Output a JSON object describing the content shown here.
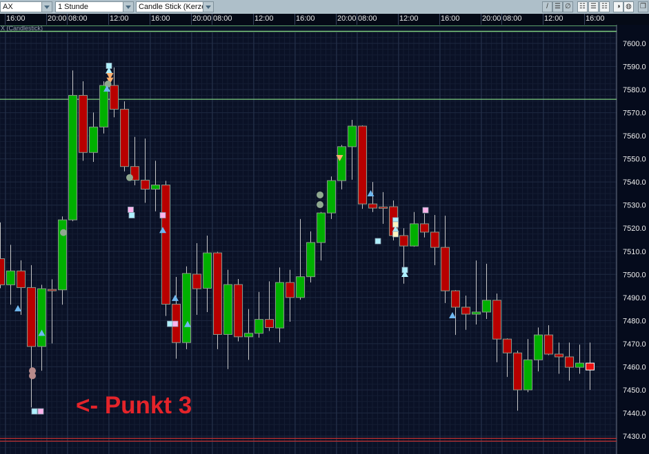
{
  "toolbar": {
    "symbol": "AX",
    "interval": "1 Stunde",
    "chart_type": "Candle Stick (Kerze",
    "buttons": [
      {
        "icon": "draw-line-icon",
        "glyph": "/"
      },
      {
        "icon": "horizontal-line-icon",
        "glyph": "☰"
      },
      {
        "icon": "delete-drawing-icon",
        "glyph": "∅"
      },
      {
        "icon": "grid-dense-icon",
        "glyph": "☷"
      },
      {
        "icon": "grid-medium-icon",
        "glyph": "☰"
      },
      {
        "icon": "grid-light-icon",
        "glyph": "☷"
      },
      {
        "icon": "zoom-in-icon",
        "glyph": "◑"
      },
      {
        "icon": "zoom-out-icon",
        "glyph": "◍"
      },
      {
        "icon": "detach-window-icon",
        "glyph": "❐"
      }
    ]
  },
  "panel_title": "X (Candlestick)",
  "annotation": "<- Punkt 3",
  "colors": {
    "background": "#0a1126",
    "grid": "#1d2840",
    "up": "#00b000",
    "down": "#b80000",
    "last_down": "#ee1111",
    "wick": "#c8c8c8",
    "hline_green": "#7fd07f",
    "hline_red": "#c03030"
  },
  "chart_data": {
    "type": "candlestick",
    "ylim": [
      7425,
      7605
    ],
    "y_ticks": [
      "7600.0",
      "7590.0",
      "7580.0",
      "7570.0",
      "7560.0",
      "7550.0",
      "7540.0",
      "7530.0",
      "7520.0",
      "7510.0",
      "7500.0",
      "7490.0",
      "7480.0",
      "7470.0",
      "7460.0",
      "7450.0",
      "7440.0",
      "7430.0"
    ],
    "x_ticks": [
      {
        "candle": 1,
        "label": "16:00"
      },
      {
        "candle": 5,
        "label": "20:00"
      },
      {
        "candle": 7,
        "label": "08:00"
      },
      {
        "candle": 11,
        "label": "12:00"
      },
      {
        "candle": 15,
        "label": "16:00"
      },
      {
        "candle": 19,
        "label": "20:00"
      },
      {
        "candle": 21,
        "label": "08:00"
      },
      {
        "candle": 25,
        "label": "12:00"
      },
      {
        "candle": 29,
        "label": "16:00"
      },
      {
        "candle": 33,
        "label": "20:00"
      },
      {
        "candle": 35,
        "label": "08:00"
      },
      {
        "candle": 39,
        "label": "12:00"
      },
      {
        "candle": 43,
        "label": "16:00"
      },
      {
        "candle": 47,
        "label": "20:00"
      },
      {
        "candle": 49,
        "label": "08:00"
      },
      {
        "candle": 53,
        "label": "12:00"
      },
      {
        "candle": 57,
        "label": "16:00"
      }
    ],
    "grid": true,
    "candles": [
      {
        "t": "15:00",
        "o": 7506.8,
        "h": 7522.5,
        "l": 7494.0,
        "c": 7495.5
      },
      {
        "t": "16:00",
        "o": 7495.5,
        "h": 7512.8,
        "l": 7486.9,
        "c": 7501.5
      },
      {
        "t": "17:00",
        "o": 7501.5,
        "h": 7506.1,
        "l": 7482.5,
        "c": 7494.3
      },
      {
        "t": "18:00",
        "o": 7494.3,
        "h": 7504.0,
        "l": 7442.4,
        "c": 7468.8
      },
      {
        "t": "19:00",
        "o": 7468.8,
        "h": 7495.5,
        "l": 7458.3,
        "c": 7493.8
      },
      {
        "t": "20:00",
        "o": 7493.5,
        "h": 7497.9,
        "l": 7470.1,
        "c": 7493.2
      },
      {
        "t": "21:00",
        "o": 7493.3,
        "h": 7525.1,
        "l": 7486.9,
        "c": 7523.6
      },
      {
        "t": "08:00",
        "o": 7523.6,
        "h": 7588.3,
        "l": 7523.0,
        "c": 7577.5
      },
      {
        "t": "09:00",
        "o": 7577.5,
        "h": 7583.6,
        "l": 7549.2,
        "c": 7552.8
      },
      {
        "t": "10:00",
        "o": 7552.8,
        "h": 7570.1,
        "l": 7548.7,
        "c": 7563.8
      },
      {
        "t": "11:00",
        "o": 7563.8,
        "h": 7583.6,
        "l": 7561.0,
        "c": 7581.8
      },
      {
        "t": "12:00",
        "o": 7581.8,
        "h": 7589.6,
        "l": 7568.0,
        "c": 7571.5
      },
      {
        "t": "13:00",
        "o": 7571.5,
        "h": 7574.9,
        "l": 7544.6,
        "c": 7546.7
      },
      {
        "t": "14:00",
        "o": 7546.7,
        "h": 7559.5,
        "l": 7538.6,
        "c": 7540.8
      },
      {
        "t": "15:00",
        "o": 7540.8,
        "h": 7558.8,
        "l": 7531.0,
        "c": 7536.9
      },
      {
        "t": "16:00",
        "o": 7536.9,
        "h": 7549.2,
        "l": 7527.3,
        "c": 7538.7
      },
      {
        "t": "17:00",
        "o": 7538.7,
        "h": 7540.5,
        "l": 7482.0,
        "c": 7487.1
      },
      {
        "t": "18:00",
        "o": 7487.1,
        "h": 7498.9,
        "l": 7463.5,
        "c": 7470.5
      },
      {
        "t": "19:00",
        "o": 7470.5,
        "h": 7503.5,
        "l": 7467.6,
        "c": 7500.4
      },
      {
        "t": "20:00",
        "o": 7500.1,
        "h": 7513.5,
        "l": 7482.5,
        "c": 7493.8
      },
      {
        "t": "21:00",
        "o": 7494.0,
        "h": 7516.8,
        "l": 7483.7,
        "c": 7509.3
      },
      {
        "t": "08:00",
        "o": 7509.3,
        "h": 7509.8,
        "l": 7467.6,
        "c": 7474.0
      },
      {
        "t": "09:00",
        "o": 7474.0,
        "h": 7502.0,
        "l": 7459.0,
        "c": 7495.6
      },
      {
        "t": "10:00",
        "o": 7495.6,
        "h": 7498.0,
        "l": 7471.0,
        "c": 7473.0
      },
      {
        "t": "11:00",
        "o": 7473.0,
        "h": 7485.0,
        "l": 7463.0,
        "c": 7474.5
      },
      {
        "t": "12:00",
        "o": 7474.5,
        "h": 7492.4,
        "l": 7472.6,
        "c": 7480.5
      },
      {
        "t": "13:00",
        "o": 7480.5,
        "h": 7497.0,
        "l": 7475.5,
        "c": 7477.0
      },
      {
        "t": "14:00",
        "o": 7476.8,
        "h": 7503.0,
        "l": 7470.6,
        "c": 7496.5
      },
      {
        "t": "15:00",
        "o": 7496.5,
        "h": 7502.0,
        "l": 7479.5,
        "c": 7490.0
      },
      {
        "t": "16:00",
        "o": 7490.0,
        "h": 7524.0,
        "l": 7489.0,
        "c": 7499.0
      },
      {
        "t": "17:00",
        "o": 7499.0,
        "h": 7518.6,
        "l": 7496.5,
        "c": 7513.8
      },
      {
        "t": "18:00",
        "o": 7513.8,
        "h": 7527.0,
        "l": 7506.0,
        "c": 7526.6
      },
      {
        "t": "19:00",
        "o": 7526.6,
        "h": 7542.4,
        "l": 7524.0,
        "c": 7540.6
      },
      {
        "t": "20:00",
        "o": 7540.6,
        "h": 7556.0,
        "l": 7536.8,
        "c": 7555.3
      },
      {
        "t": "21:00",
        "o": 7555.3,
        "h": 7566.9,
        "l": 7541.0,
        "c": 7564.2
      },
      {
        "t": "08:00",
        "o": 7564.2,
        "h": 7564.5,
        "l": 7528.4,
        "c": 7530.5
      },
      {
        "t": "09:00",
        "o": 7530.5,
        "h": 7540.0,
        "l": 7527.0,
        "c": 7528.7
      },
      {
        "t": "10:00",
        "o": 7529.2,
        "h": 7535.6,
        "l": 7521.9,
        "c": 7528.8
      },
      {
        "t": "11:00",
        "o": 7529.3,
        "h": 7532.0,
        "l": 7514.7,
        "c": 7516.8
      },
      {
        "t": "12:00",
        "o": 7516.8,
        "h": 7520.0,
        "l": 7496.0,
        "c": 7512.3
      },
      {
        "t": "13:00",
        "o": 7512.3,
        "h": 7527.0,
        "l": 7512.0,
        "c": 7521.9
      },
      {
        "t": "14:00",
        "o": 7521.9,
        "h": 7526.3,
        "l": 7516.0,
        "c": 7518.3
      },
      {
        "t": "15:00",
        "o": 7518.3,
        "h": 7525.7,
        "l": 7504.0,
        "c": 7511.7
      },
      {
        "t": "16:00",
        "o": 7511.7,
        "h": 7525.4,
        "l": 7487.6,
        "c": 7492.9
      },
      {
        "t": "17:00",
        "o": 7492.9,
        "h": 7493.2,
        "l": 7473.8,
        "c": 7485.8
      },
      {
        "t": "18:00",
        "o": 7485.8,
        "h": 7490.8,
        "l": 7476.0,
        "c": 7482.8
      },
      {
        "t": "19:00",
        "o": 7482.8,
        "h": 7506.0,
        "l": 7478.3,
        "c": 7483.7
      },
      {
        "t": "20:00",
        "o": 7483.7,
        "h": 7504.6,
        "l": 7480.7,
        "c": 7488.8
      },
      {
        "t": "21:00",
        "o": 7488.8,
        "h": 7491.7,
        "l": 7462.0,
        "c": 7472.0
      },
      {
        "t": "08:00",
        "o": 7472.0,
        "h": 7472.3,
        "l": 7455.6,
        "c": 7466.0
      },
      {
        "t": "09:00",
        "o": 7466.0,
        "h": 7467.0,
        "l": 7441.0,
        "c": 7450.0
      },
      {
        "t": "10:00",
        "o": 7450.0,
        "h": 7472.0,
        "l": 7449.0,
        "c": 7463.0
      },
      {
        "t": "11:00",
        "o": 7463.0,
        "h": 7477.0,
        "l": 7458.0,
        "c": 7473.8
      },
      {
        "t": "12:00",
        "o": 7473.8,
        "h": 7478.0,
        "l": 7465.0,
        "c": 7465.5
      },
      {
        "t": "13:00",
        "o": 7465.5,
        "h": 7470.5,
        "l": 7457.0,
        "c": 7464.3
      },
      {
        "t": "14:00",
        "o": 7464.3,
        "h": 7470.5,
        "l": 7454.0,
        "c": 7459.8
      },
      {
        "t": "15:00",
        "o": 7459.8,
        "h": 7469.6,
        "l": 7457.0,
        "c": 7461.6
      },
      {
        "t": "16:00",
        "o": 7461.6,
        "h": 7470.5,
        "l": 7450.0,
        "c": 7458.6
      }
    ],
    "hlines": [
      {
        "price": 7575.8,
        "color": "#7fd07f"
      },
      {
        "price": 7429.0,
        "color": "#c03030"
      },
      {
        "price": 7427.8,
        "color": "#c03030"
      }
    ],
    "markers": [
      {
        "candle": 1.7,
        "price": 7485.2,
        "shape": "triangle-up",
        "color": "#6fb8f0"
      },
      {
        "candle": 4,
        "price": 7474.6,
        "shape": "triangle-up",
        "color": "#6fb8f0"
      },
      {
        "candle": 3.1,
        "price": 7458.3,
        "shape": "circle",
        "color": "#b88a8a"
      },
      {
        "candle": 3.1,
        "price": 7456.1,
        "shape": "circle",
        "color": "#b88a8a"
      },
      {
        "candle": 3.3,
        "price": 7440.7,
        "shape": "square",
        "color": "#aef0ff"
      },
      {
        "candle": 3.9,
        "price": 7440.7,
        "shape": "square",
        "color": "#ffb4ec"
      },
      {
        "candle": 6.1,
        "price": 7518.1,
        "shape": "circle",
        "color": "#8fa88f"
      },
      {
        "candle": 10.5,
        "price": 7590.3,
        "shape": "square",
        "color": "#aef0ff"
      },
      {
        "candle": 10.5,
        "price": 7588.2,
        "shape": "triangle-up",
        "color": "#aef0ff"
      },
      {
        "candle": 10.6,
        "price": 7586.0,
        "shape": "triangle-down",
        "color": "#ffb070"
      },
      {
        "candle": 10.6,
        "price": 7584.0,
        "shape": "triangle-down",
        "color": "#ffb070"
      },
      {
        "candle": 10.4,
        "price": 7582.4,
        "shape": "circle",
        "color": "#8fa88f"
      },
      {
        "candle": 10.3,
        "price": 7580.3,
        "shape": "triangle-up",
        "color": "#6fb8f0"
      },
      {
        "candle": 12.5,
        "price": 7541.9,
        "shape": "circle",
        "color": "#8fa88f"
      },
      {
        "candle": 12.6,
        "price": 7528.0,
        "shape": "square",
        "color": "#ffb4ec"
      },
      {
        "candle": 12.7,
        "price": 7525.6,
        "shape": "square",
        "color": "#aef0ff"
      },
      {
        "candle": 15.7,
        "price": 7525.6,
        "shape": "square",
        "color": "#ffb4ec"
      },
      {
        "candle": 15.7,
        "price": 7519.1,
        "shape": "triangle-up",
        "color": "#6fb8f0"
      },
      {
        "candle": 16.4,
        "price": 7478.6,
        "shape": "square",
        "color": "#aef0ff"
      },
      {
        "candle": 16.9,
        "price": 7478.6,
        "shape": "square",
        "color": "#ffb4ec"
      },
      {
        "candle": 16.9,
        "price": 7489.7,
        "shape": "triangle-up",
        "color": "#6fb8f0"
      },
      {
        "candle": 18.1,
        "price": 7478.4,
        "shape": "triangle-up",
        "color": "#6fb8f0"
      },
      {
        "candle": 30.9,
        "price": 7534.4,
        "shape": "circle",
        "color": "#8fa88f"
      },
      {
        "candle": 30.9,
        "price": 7530.2,
        "shape": "circle",
        "color": "#8fa88f"
      },
      {
        "candle": 32.8,
        "price": 7550.5,
        "shape": "triangle-down",
        "color": "#ffb070"
      },
      {
        "candle": 35.8,
        "price": 7535.0,
        "shape": "triangle-up",
        "color": "#6fb8f0"
      },
      {
        "candle": 36.5,
        "price": 7514.4,
        "shape": "square",
        "color": "#aef0ff"
      },
      {
        "candle": 38.2,
        "price": 7523.4,
        "shape": "square",
        "color": "#aef0ff"
      },
      {
        "candle": 38.2,
        "price": 7521.6,
        "shape": "square",
        "color": "#fff4c0"
      },
      {
        "candle": 38.2,
        "price": 7519.5,
        "shape": "triangle-up",
        "color": "#aef0ff"
      },
      {
        "candle": 38.2,
        "price": 7517.4,
        "shape": "square",
        "color": "#fff4c0"
      },
      {
        "candle": 39.1,
        "price": 7501.9,
        "shape": "square",
        "color": "#aef0ff"
      },
      {
        "candle": 39.1,
        "price": 7500.1,
        "shape": "triangle-up",
        "color": "#aef0ff"
      },
      {
        "candle": 41.1,
        "price": 7527.8,
        "shape": "square",
        "color": "#ffb4ec"
      },
      {
        "candle": 43.7,
        "price": 7482.2,
        "shape": "triangle-up",
        "color": "#6fb8f0"
      }
    ]
  }
}
